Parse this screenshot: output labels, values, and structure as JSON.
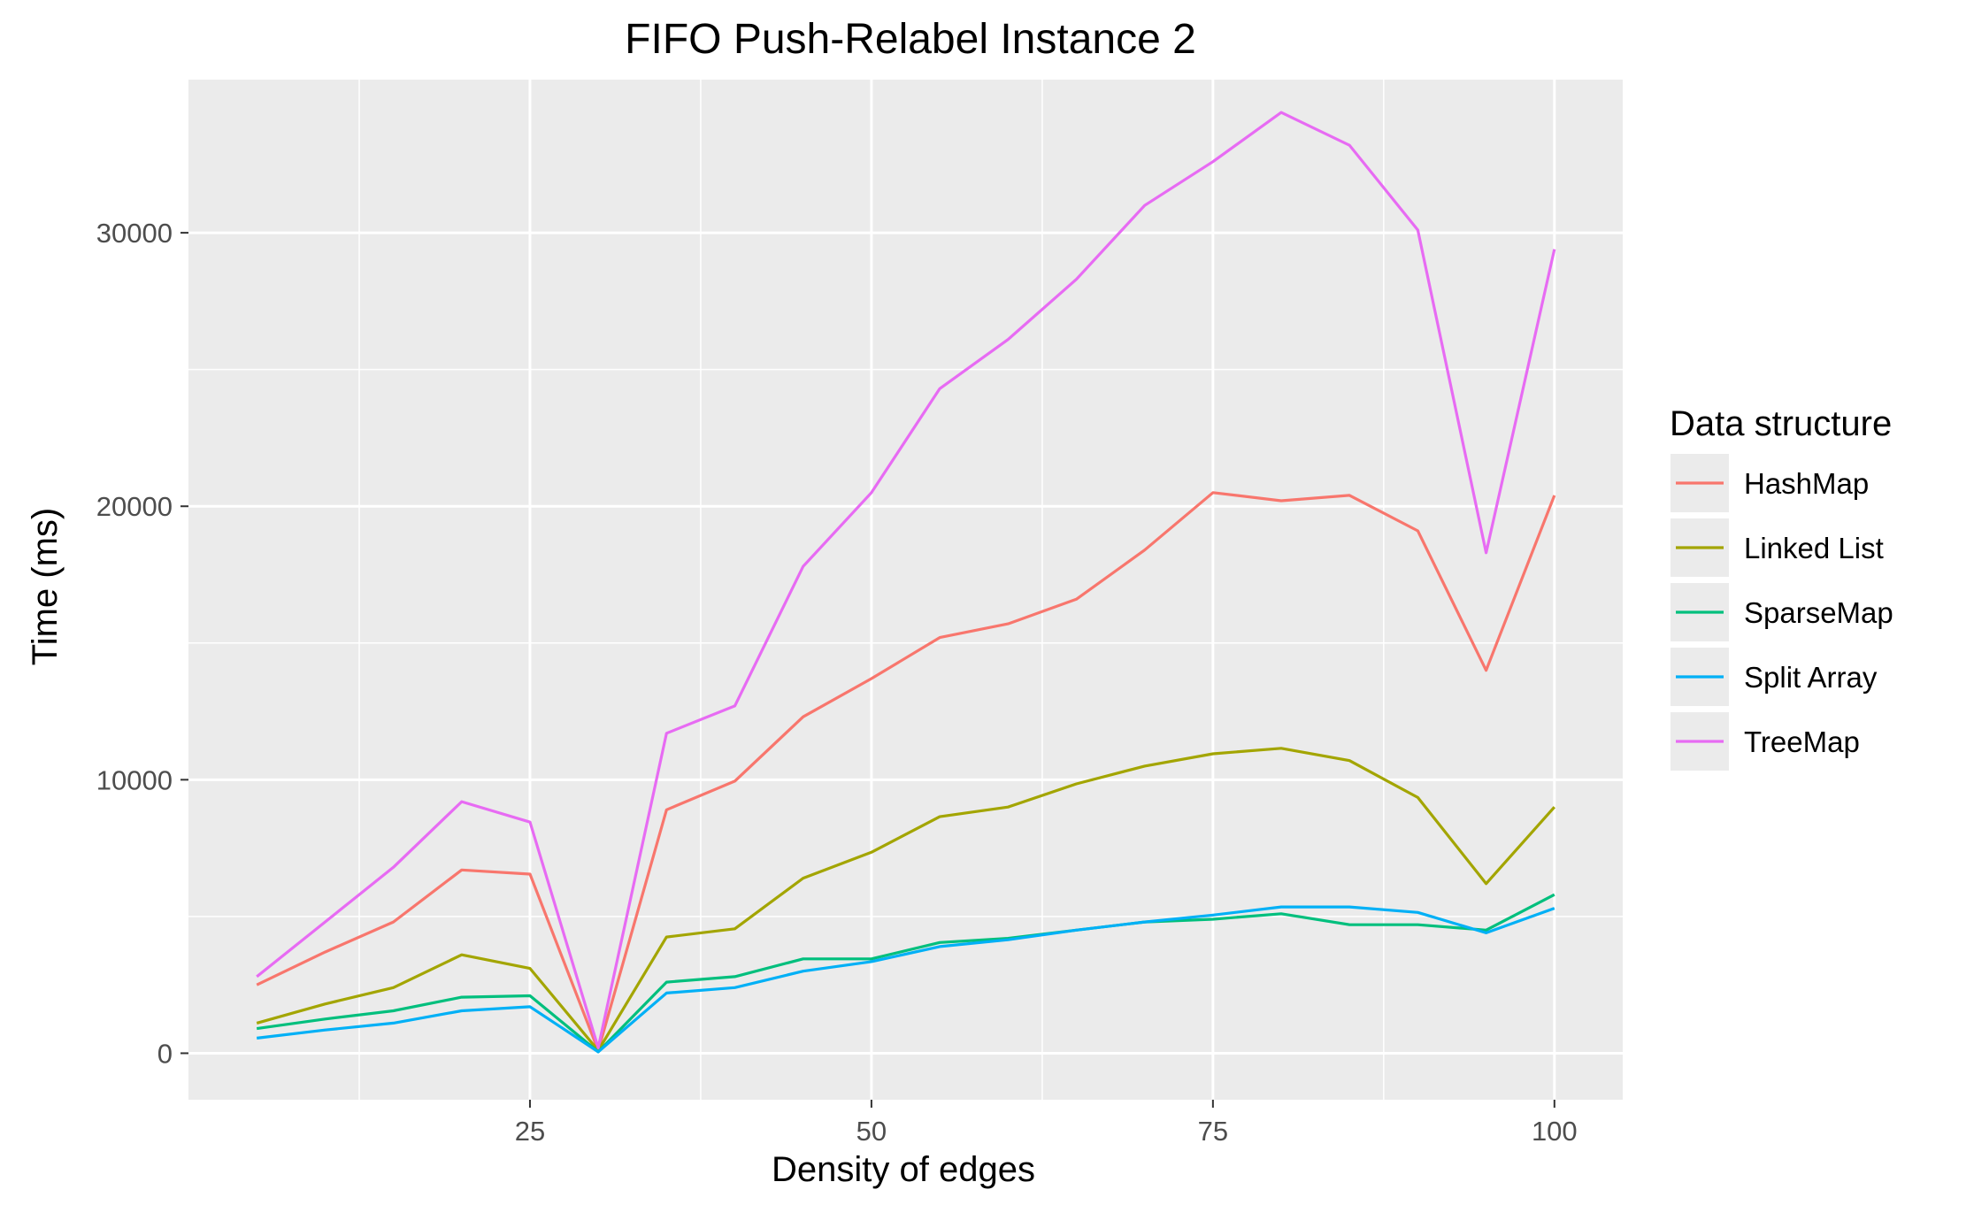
{
  "chart_data": {
    "type": "line",
    "title": "FIFO Push-Relabel Instance 2",
    "xlabel": "Density of edges",
    "ylabel": "Time (ms)",
    "xlim": [
      0,
      105
    ],
    "ylim": [
      -1700,
      35600
    ],
    "x_ticks": [
      25,
      50,
      75,
      100
    ],
    "x_minor_ticks": [
      12.5,
      37.5,
      62.5,
      87.5
    ],
    "y_ticks": [
      0,
      10000,
      20000,
      30000
    ],
    "y_minor_ticks": [
      5000,
      15000,
      25000
    ],
    "x_tick_labels": [
      "25",
      "50",
      "75",
      "100"
    ],
    "y_tick_labels": [
      "0",
      "10000",
      "20000",
      "30000"
    ],
    "grid": true,
    "legend_title": "Data structure",
    "legend_position": "right",
    "x": [
      5,
      10,
      15,
      20,
      25,
      30,
      35,
      40,
      45,
      50,
      55,
      60,
      65,
      70,
      75,
      80,
      85,
      90,
      95,
      100
    ],
    "series": [
      {
        "name": "HashMap",
        "color": "#F8766D",
        "values": [
          2500,
          3700,
          4800,
          6700,
          6550,
          100,
          8900,
          9950,
          12300,
          13700,
          15200,
          15700,
          16600,
          18400,
          20500,
          20200,
          20400,
          19100,
          14000,
          20400
        ]
      },
      {
        "name": "Linked List",
        "color": "#A3A500",
        "values": [
          1100,
          1800,
          2400,
          3600,
          3100,
          100,
          4250,
          4550,
          6400,
          7350,
          8650,
          9000,
          9850,
          10500,
          10950,
          11150,
          10700,
          9350,
          6200,
          9000
        ]
      },
      {
        "name": "SparseMap",
        "color": "#00BF7D",
        "values": [
          900,
          1250,
          1550,
          2050,
          2100,
          50,
          2600,
          2800,
          3450,
          3450,
          4050,
          4200,
          4500,
          4800,
          4900,
          5100,
          4700,
          4700,
          4500,
          5800
        ]
      },
      {
        "name": "Split Array",
        "color": "#00B0F6",
        "values": [
          550,
          850,
          1100,
          1550,
          1700,
          50,
          2200,
          2400,
          3000,
          3350,
          3900,
          4150,
          4500,
          4800,
          5050,
          5350,
          5350,
          5150,
          4400,
          5300
        ]
      },
      {
        "name": "TreeMap",
        "color": "#E76BF3",
        "values": [
          2800,
          4800,
          6800,
          9200,
          8450,
          200,
          11700,
          12700,
          17800,
          20500,
          24300,
          26100,
          28300,
          31000,
          32600,
          34400,
          33200,
          30100,
          18300,
          29400
        ]
      }
    ]
  }
}
